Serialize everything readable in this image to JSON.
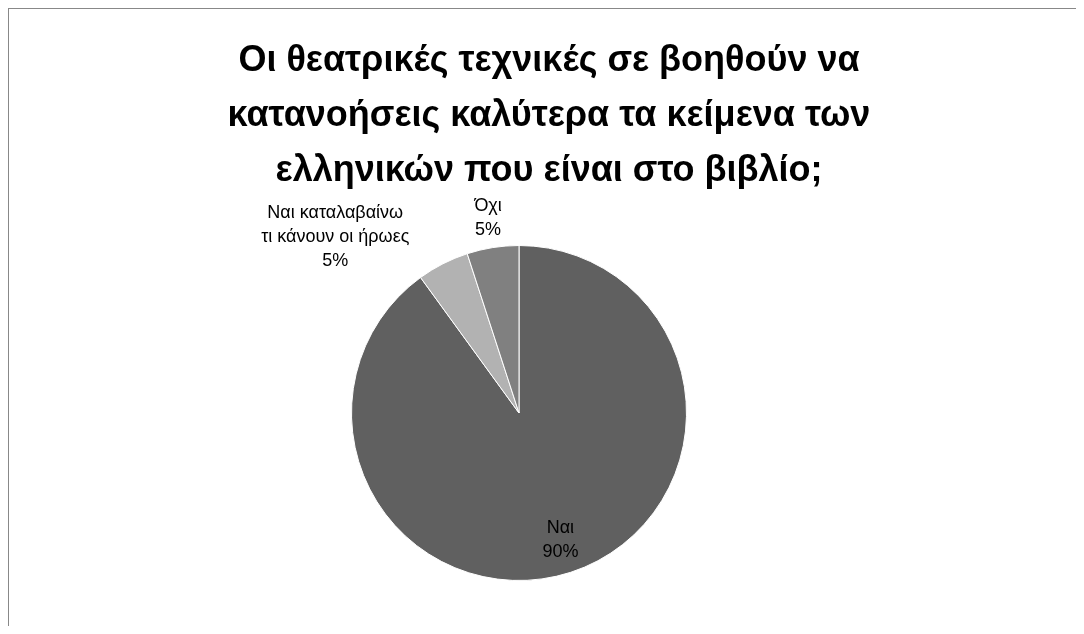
{
  "chart_data": {
    "type": "pie",
    "title": "Οι θεατρικές τεχνικές σε βοηθούν να κατανοήσεις καλύτερα τα κείμενα των ελληνικών που είναι στο βιβλίο;",
    "categories": [
      "Ναι",
      "Ναι καταλαβαίνω τι κάνουν οι ήρωες",
      "Όχι"
    ],
    "values": [
      90,
      5,
      5
    ],
    "colors": [
      "#606060",
      "#b2b2b2",
      "#808080"
    ],
    "value_labels": [
      "90%",
      "5%",
      "5%"
    ],
    "legend": false
  }
}
